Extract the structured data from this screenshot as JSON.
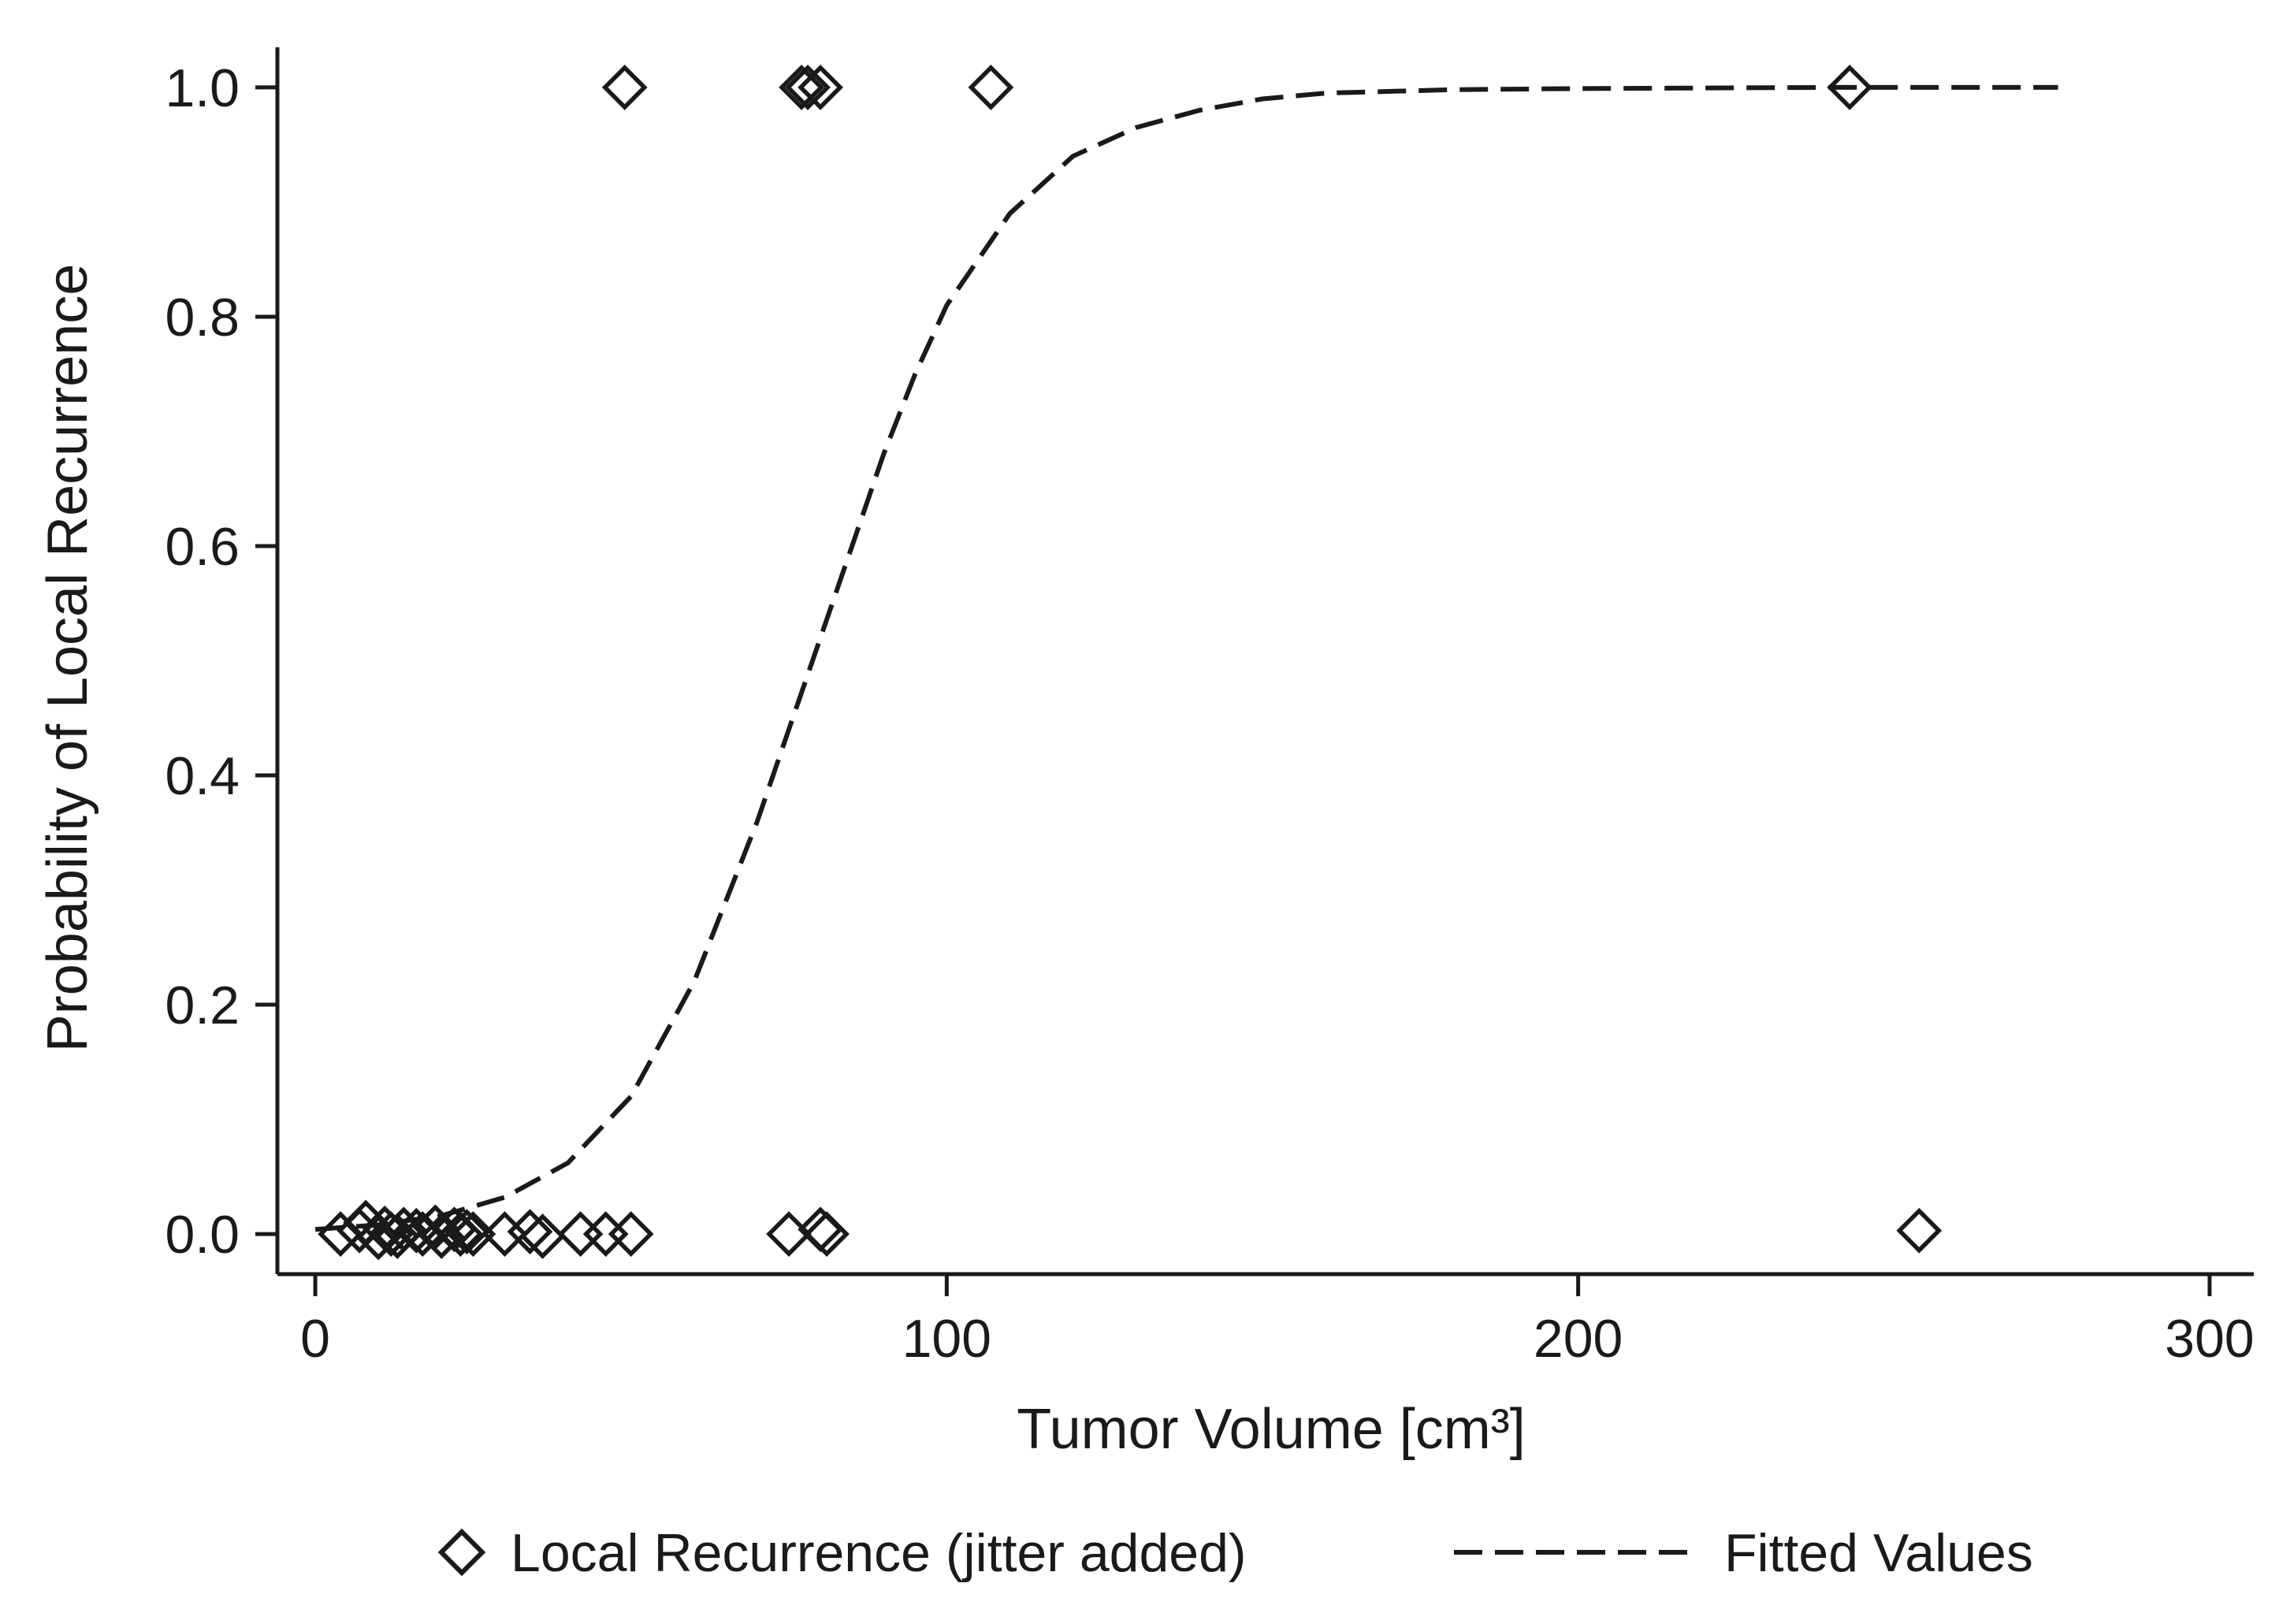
{
  "chart_data": {
    "type": "scatter",
    "xlabel": "Tumor Volume [cm³]",
    "ylabel": "Probability of Local Recurrence",
    "xlim": [
      -6,
      307
    ],
    "ylim": [
      -0.035,
      1.035
    ],
    "xticks": [
      {
        "value": 0,
        "label": "0"
      },
      {
        "value": 100,
        "label": "100"
      },
      {
        "value": 200,
        "label": "200"
      },
      {
        "value": 300,
        "label": "300"
      }
    ],
    "yticks": [
      {
        "value": 0,
        "label": "0.0"
      },
      {
        "value": 0.2,
        "label": "0.2"
      },
      {
        "value": 0.4,
        "label": "0.4"
      },
      {
        "value": 0.6,
        "label": "0.6"
      },
      {
        "value": 0.8,
        "label": "0.8"
      },
      {
        "value": 1.0,
        "label": "1.0"
      }
    ],
    "grid": false,
    "legend_position": "bottom",
    "series": [
      {
        "name": "Local Recurrence (jitter added)",
        "kind": "scatter",
        "marker": "diamond",
        "color": "#1a1a1a",
        "points": [
          [
            49,
            1.0
          ],
          [
            77,
            1.0
          ],
          [
            78,
            1.0
          ],
          [
            80,
            1.0
          ],
          [
            107,
            1.0
          ],
          [
            243,
            1.0
          ],
          [
            4,
            0.0
          ],
          [
            7,
            0.003
          ],
          [
            8,
            0.01
          ],
          [
            10,
            -0.003
          ],
          [
            11,
            0.005
          ],
          [
            12,
            0.0
          ],
          [
            13,
            -0.002
          ],
          [
            14,
            0.004
          ],
          [
            16,
            0.003
          ],
          [
            17,
            0.0
          ],
          [
            19,
            0.006
          ],
          [
            20,
            -0.002
          ],
          [
            22,
            0.004
          ],
          [
            23,
            0.0
          ],
          [
            24,
            0.002
          ],
          [
            25,
            0.0
          ],
          [
            30,
            0.0
          ],
          [
            34,
            0.002
          ],
          [
            36,
            -0.002
          ],
          [
            42,
            0.0
          ],
          [
            46,
            0.0
          ],
          [
            50,
            0.0
          ],
          [
            75,
            0.0
          ],
          [
            80,
            0.004
          ],
          [
            81,
            0.0
          ],
          [
            254,
            0.003
          ]
        ]
      },
      {
        "name": "Fitted Values",
        "kind": "line",
        "dash": "dashed",
        "color": "#1a1a1a",
        "points": [
          [
            0,
            0.004
          ],
          [
            10,
            0.008
          ],
          [
            20,
            0.016
          ],
          [
            30,
            0.032
          ],
          [
            40,
            0.062
          ],
          [
            50,
            0.12
          ],
          [
            60,
            0.22
          ],
          [
            70,
            0.36
          ],
          [
            75,
            0.44
          ],
          [
            80,
            0.52
          ],
          [
            85,
            0.6
          ],
          [
            90,
            0.68
          ],
          [
            95,
            0.75
          ],
          [
            100,
            0.81
          ],
          [
            110,
            0.89
          ],
          [
            120,
            0.94
          ],
          [
            130,
            0.965
          ],
          [
            140,
            0.98
          ],
          [
            150,
            0.99
          ],
          [
            160,
            0.995
          ],
          [
            180,
            0.998
          ],
          [
            200,
            0.999
          ],
          [
            240,
            1.0
          ],
          [
            276,
            1.0
          ]
        ]
      }
    ]
  }
}
